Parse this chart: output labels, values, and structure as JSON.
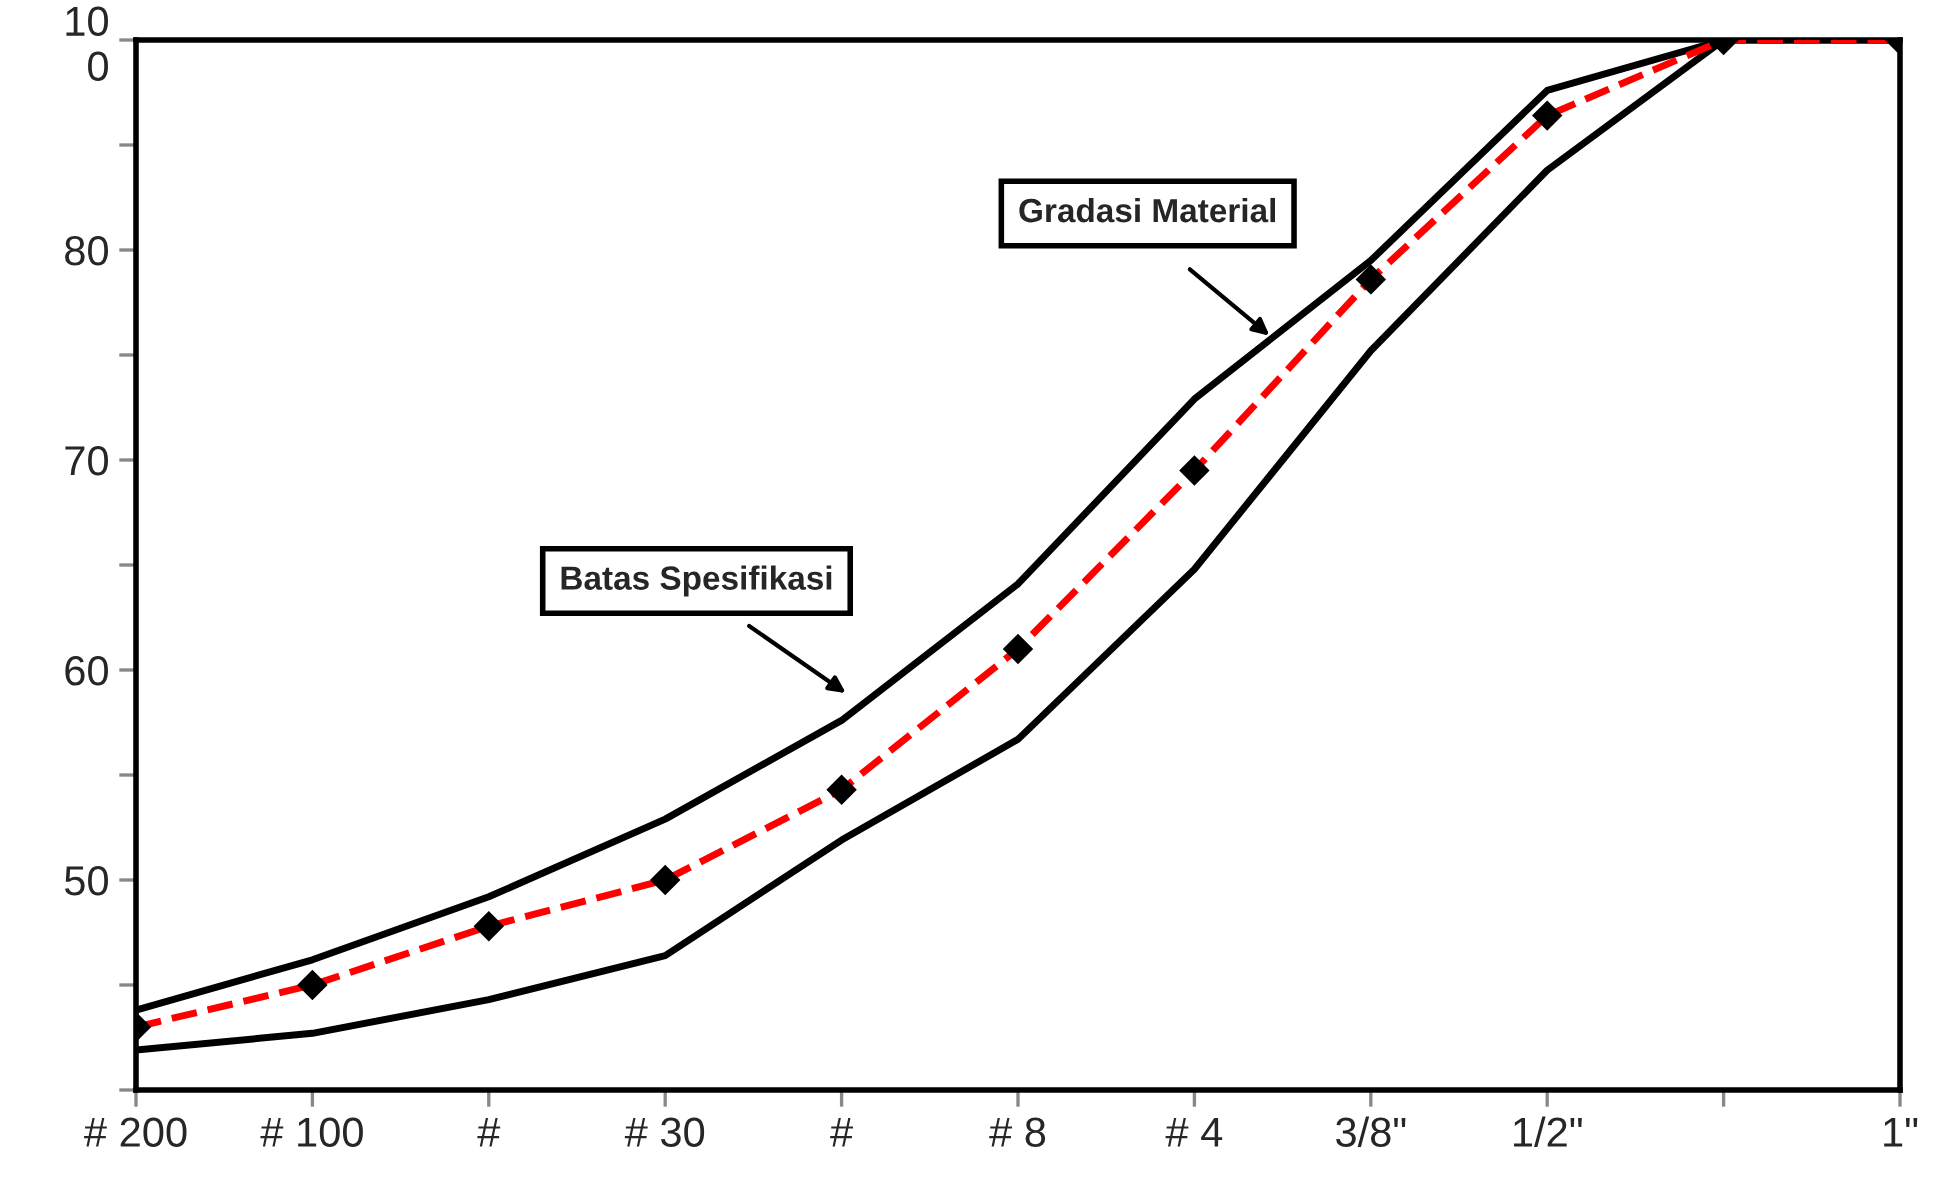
{
  "chart_data": {
    "type": "line",
    "categories": [
      "# 200",
      "# 100",
      "#",
      "# 30",
      "#",
      "# 8",
      "# 4",
      "3/8\"",
      "1/2\"",
      null,
      "1\""
    ],
    "series": [
      {
        "color": "#000000",
        "marker": "none",
        "line_style": "solid",
        "values": [
          43.8,
          46.2,
          49.2,
          52.9,
          57.6,
          64.1,
          72.9,
          79.5,
          87.6,
          90,
          90
        ]
      },
      {
        "color": "#000000",
        "marker": "none",
        "line_style": "solid",
        "values": [
          41.9,
          42.7,
          44.3,
          46.4,
          51.9,
          56.7,
          64.8,
          75.2,
          83.8,
          90,
          90
        ]
      },
      {
        "color": "#ff0000",
        "marker": "diamond",
        "line_style": "dashed",
        "values": [
          43.0,
          45.0,
          47.8,
          50.0,
          54.3,
          61.0,
          69.5,
          78.6,
          86.4,
          90,
          90
        ]
      }
    ],
    "ylim": [
      40,
      90
    ],
    "yticks": [
      {
        "value": 40,
        "label": null
      },
      {
        "value": 45,
        "label": null
      },
      50,
      {
        "value": 55,
        "label": null
      },
      60,
      {
        "value": 65,
        "label": null
      },
      70,
      {
        "value": 75,
        "label": null
      },
      80,
      {
        "value": 85,
        "label": null
      },
      {
        "value": 90,
        "label": "10\n0"
      }
    ],
    "annotations": [
      "Gradasi Material",
      "Batas Spesifikasi"
    ],
    "grid": false,
    "legend": false
  }
}
